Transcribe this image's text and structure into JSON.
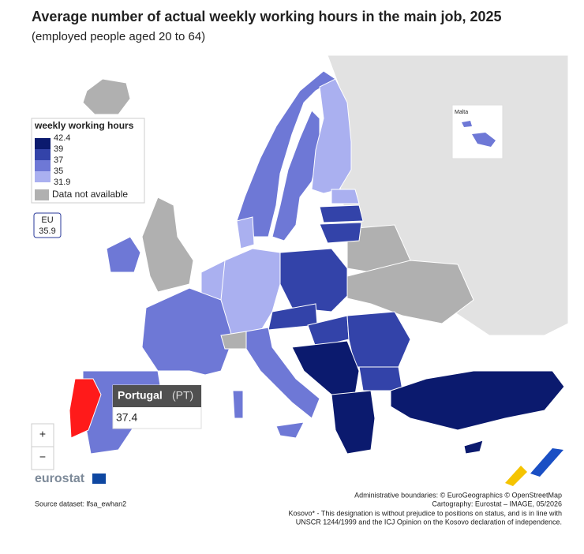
{
  "title": "Average number of actual weekly working hours in the main job, 2025",
  "subtitle": "(employed people aged 20 to 64)",
  "legend": {
    "title": "weekly working hours",
    "breaks": [
      "42.4",
      "39",
      "37",
      "35",
      "31.9"
    ],
    "colors": [
      "#0b1a6e",
      "#3343a9",
      "#6e78d6",
      "#aab0f0"
    ],
    "no_data_label": "Data not available",
    "no_data_color": "#b0b0b0"
  },
  "highlight_color": "#ff1a1a",
  "eu": {
    "label": "EU",
    "value": "35.9"
  },
  "tooltip": {
    "country": "Portugal",
    "code": "(PT)",
    "value": "37.4"
  },
  "inset_label": "Malta",
  "zoom": {
    "in": "+",
    "out": "−"
  },
  "logo": "eurostat",
  "source": "Source dataset: lfsa_ewhan2",
  "credits": [
    "Administrative boundaries: © EuroGeographics © OpenStreetMap",
    "Cartography: Eurostat – IMAGE, 05/2026",
    "Kosovo* - This designation is without prejudice to positions on status, and is in line with",
    "UNSCR 1244/1999 and the ICJ Opinion on the Kosovo declaration of independence."
  ]
}
